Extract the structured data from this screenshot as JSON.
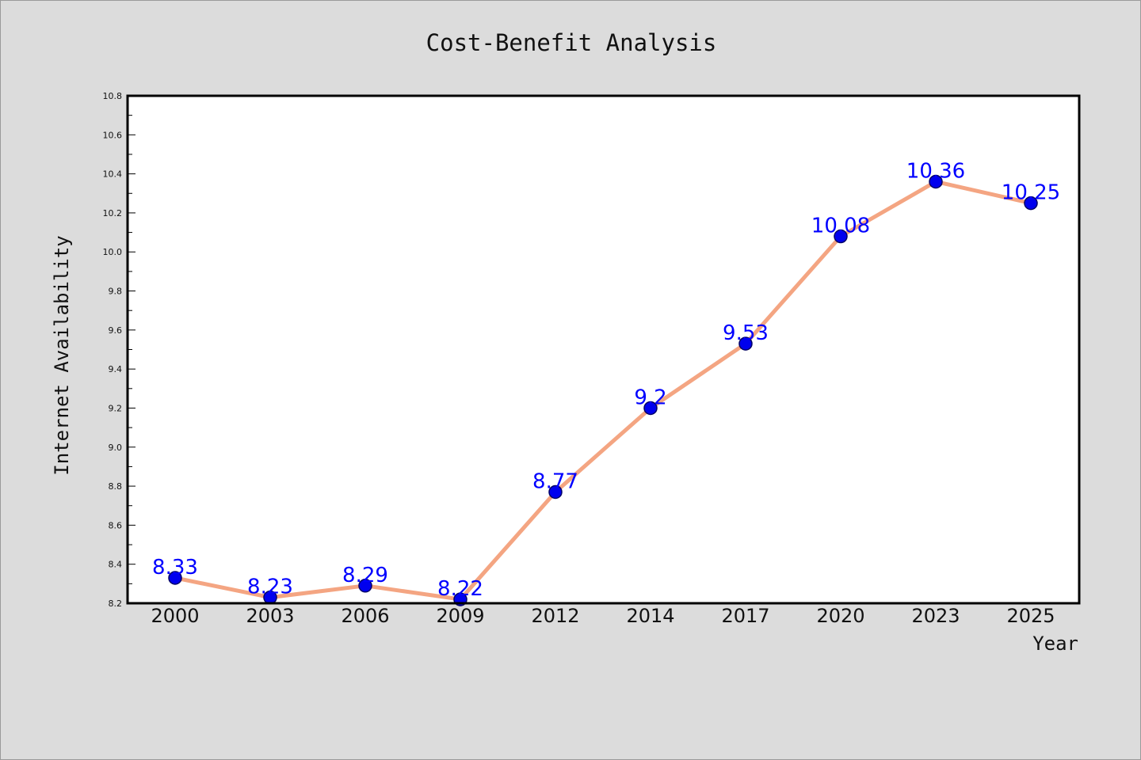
{
  "chart_data": {
    "type": "line",
    "title": "Cost-Benefit Analysis",
    "xlabel": "Year",
    "ylabel": "Internet Availability",
    "categories": [
      "2000",
      "2003",
      "2006",
      "2009",
      "2012",
      "2014",
      "2017",
      "2020",
      "2023",
      "2025"
    ],
    "series": [
      {
        "values": [
          8.33,
          8.23,
          8.29,
          8.22,
          8.77,
          9.2,
          9.53,
          10.08,
          10.36,
          10.25
        ],
        "data_labels": [
          "8.33",
          "8.23",
          "8.29",
          "8.22",
          "8.77",
          "9.2",
          "9.53",
          "10.08",
          "10.36",
          "10.25"
        ]
      }
    ],
    "ylim": [
      8.2,
      10.8
    ],
    "yticks": [
      "8.2",
      "8.4",
      "8.6",
      "8.8",
      "9.0",
      "9.2",
      "9.4",
      "9.6",
      "9.8",
      "10.0",
      "10.2",
      "10.4",
      "10.6",
      "10.8"
    ],
    "grid": false,
    "legend": "none",
    "colors": {
      "line": "#f4a582",
      "marker_fill": "#0000ee",
      "marker_edge": "#000066",
      "data_label": "#0000ff",
      "figure_background": "#dcdcdc",
      "plot_background": "#ffffff"
    }
  }
}
